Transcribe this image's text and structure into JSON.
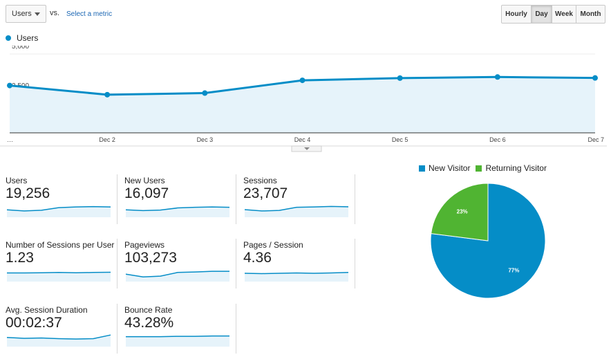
{
  "toolbar": {
    "metric_select": "Users",
    "vs_label": "vs.",
    "select_metric_link": "Select a metric",
    "periods": [
      "Hourly",
      "Day",
      "Week",
      "Month"
    ],
    "active_period": "Day"
  },
  "colors": {
    "users": "#058dc7",
    "area_fill": "#e6f3fa",
    "returning": "#50b432"
  },
  "chart_data": [
    {
      "type": "line",
      "series": [
        {
          "name": "Users",
          "values": [
            3000,
            2420,
            2520,
            3330,
            3470,
            3540,
            3480
          ]
        }
      ],
      "x": [
        "…",
        "Dec 2",
        "Dec 3",
        "Dec 4",
        "Dec 5",
        "Dec 6",
        "Dec 7"
      ],
      "ytick_labels": [
        "5,000",
        "2,500"
      ],
      "yticks": [
        5000,
        2500
      ],
      "ylim": [
        0,
        5000
      ],
      "xlabel": "",
      "ylabel": "",
      "grid": true,
      "legend": "top-left"
    },
    {
      "type": "pie",
      "categories": [
        "New Visitor",
        "Returning Visitor"
      ],
      "values": [
        77,
        23
      ],
      "labels": [
        "77%",
        "23%"
      ],
      "colors": [
        "#058dc7",
        "#50b432"
      ],
      "legend": "top"
    }
  ],
  "metrics": [
    {
      "label": "Users",
      "value": "19,256",
      "spark": [
        0.45,
        0.38,
        0.42,
        0.58,
        0.62,
        0.64,
        0.62
      ]
    },
    {
      "label": "New Users",
      "value": "16,097",
      "spark": [
        0.45,
        0.4,
        0.43,
        0.56,
        0.6,
        0.62,
        0.6
      ]
    },
    {
      "label": "Sessions",
      "value": "23,707",
      "spark": [
        0.46,
        0.38,
        0.41,
        0.6,
        0.62,
        0.65,
        0.63
      ]
    },
    {
      "label": "Number of Sessions per User",
      "value": "1.23",
      "spark": [
        0.52,
        0.52,
        0.53,
        0.55,
        0.53,
        0.55,
        0.56
      ]
    },
    {
      "label": "Pageviews",
      "value": "103,273",
      "spark": [
        0.45,
        0.28,
        0.33,
        0.55,
        0.58,
        0.62,
        0.62
      ]
    },
    {
      "label": "Pages / Session",
      "value": "4.36",
      "spark": [
        0.5,
        0.48,
        0.5,
        0.52,
        0.5,
        0.52,
        0.55
      ]
    },
    {
      "label": "Avg. Session Duration",
      "value": "00:02:37",
      "spark": [
        0.55,
        0.5,
        0.52,
        0.48,
        0.46,
        0.48,
        0.7
      ]
    },
    {
      "label": "Bounce Rate",
      "value": "43.28%",
      "spark": [
        0.6,
        0.6,
        0.6,
        0.62,
        0.62,
        0.64,
        0.64
      ]
    }
  ]
}
